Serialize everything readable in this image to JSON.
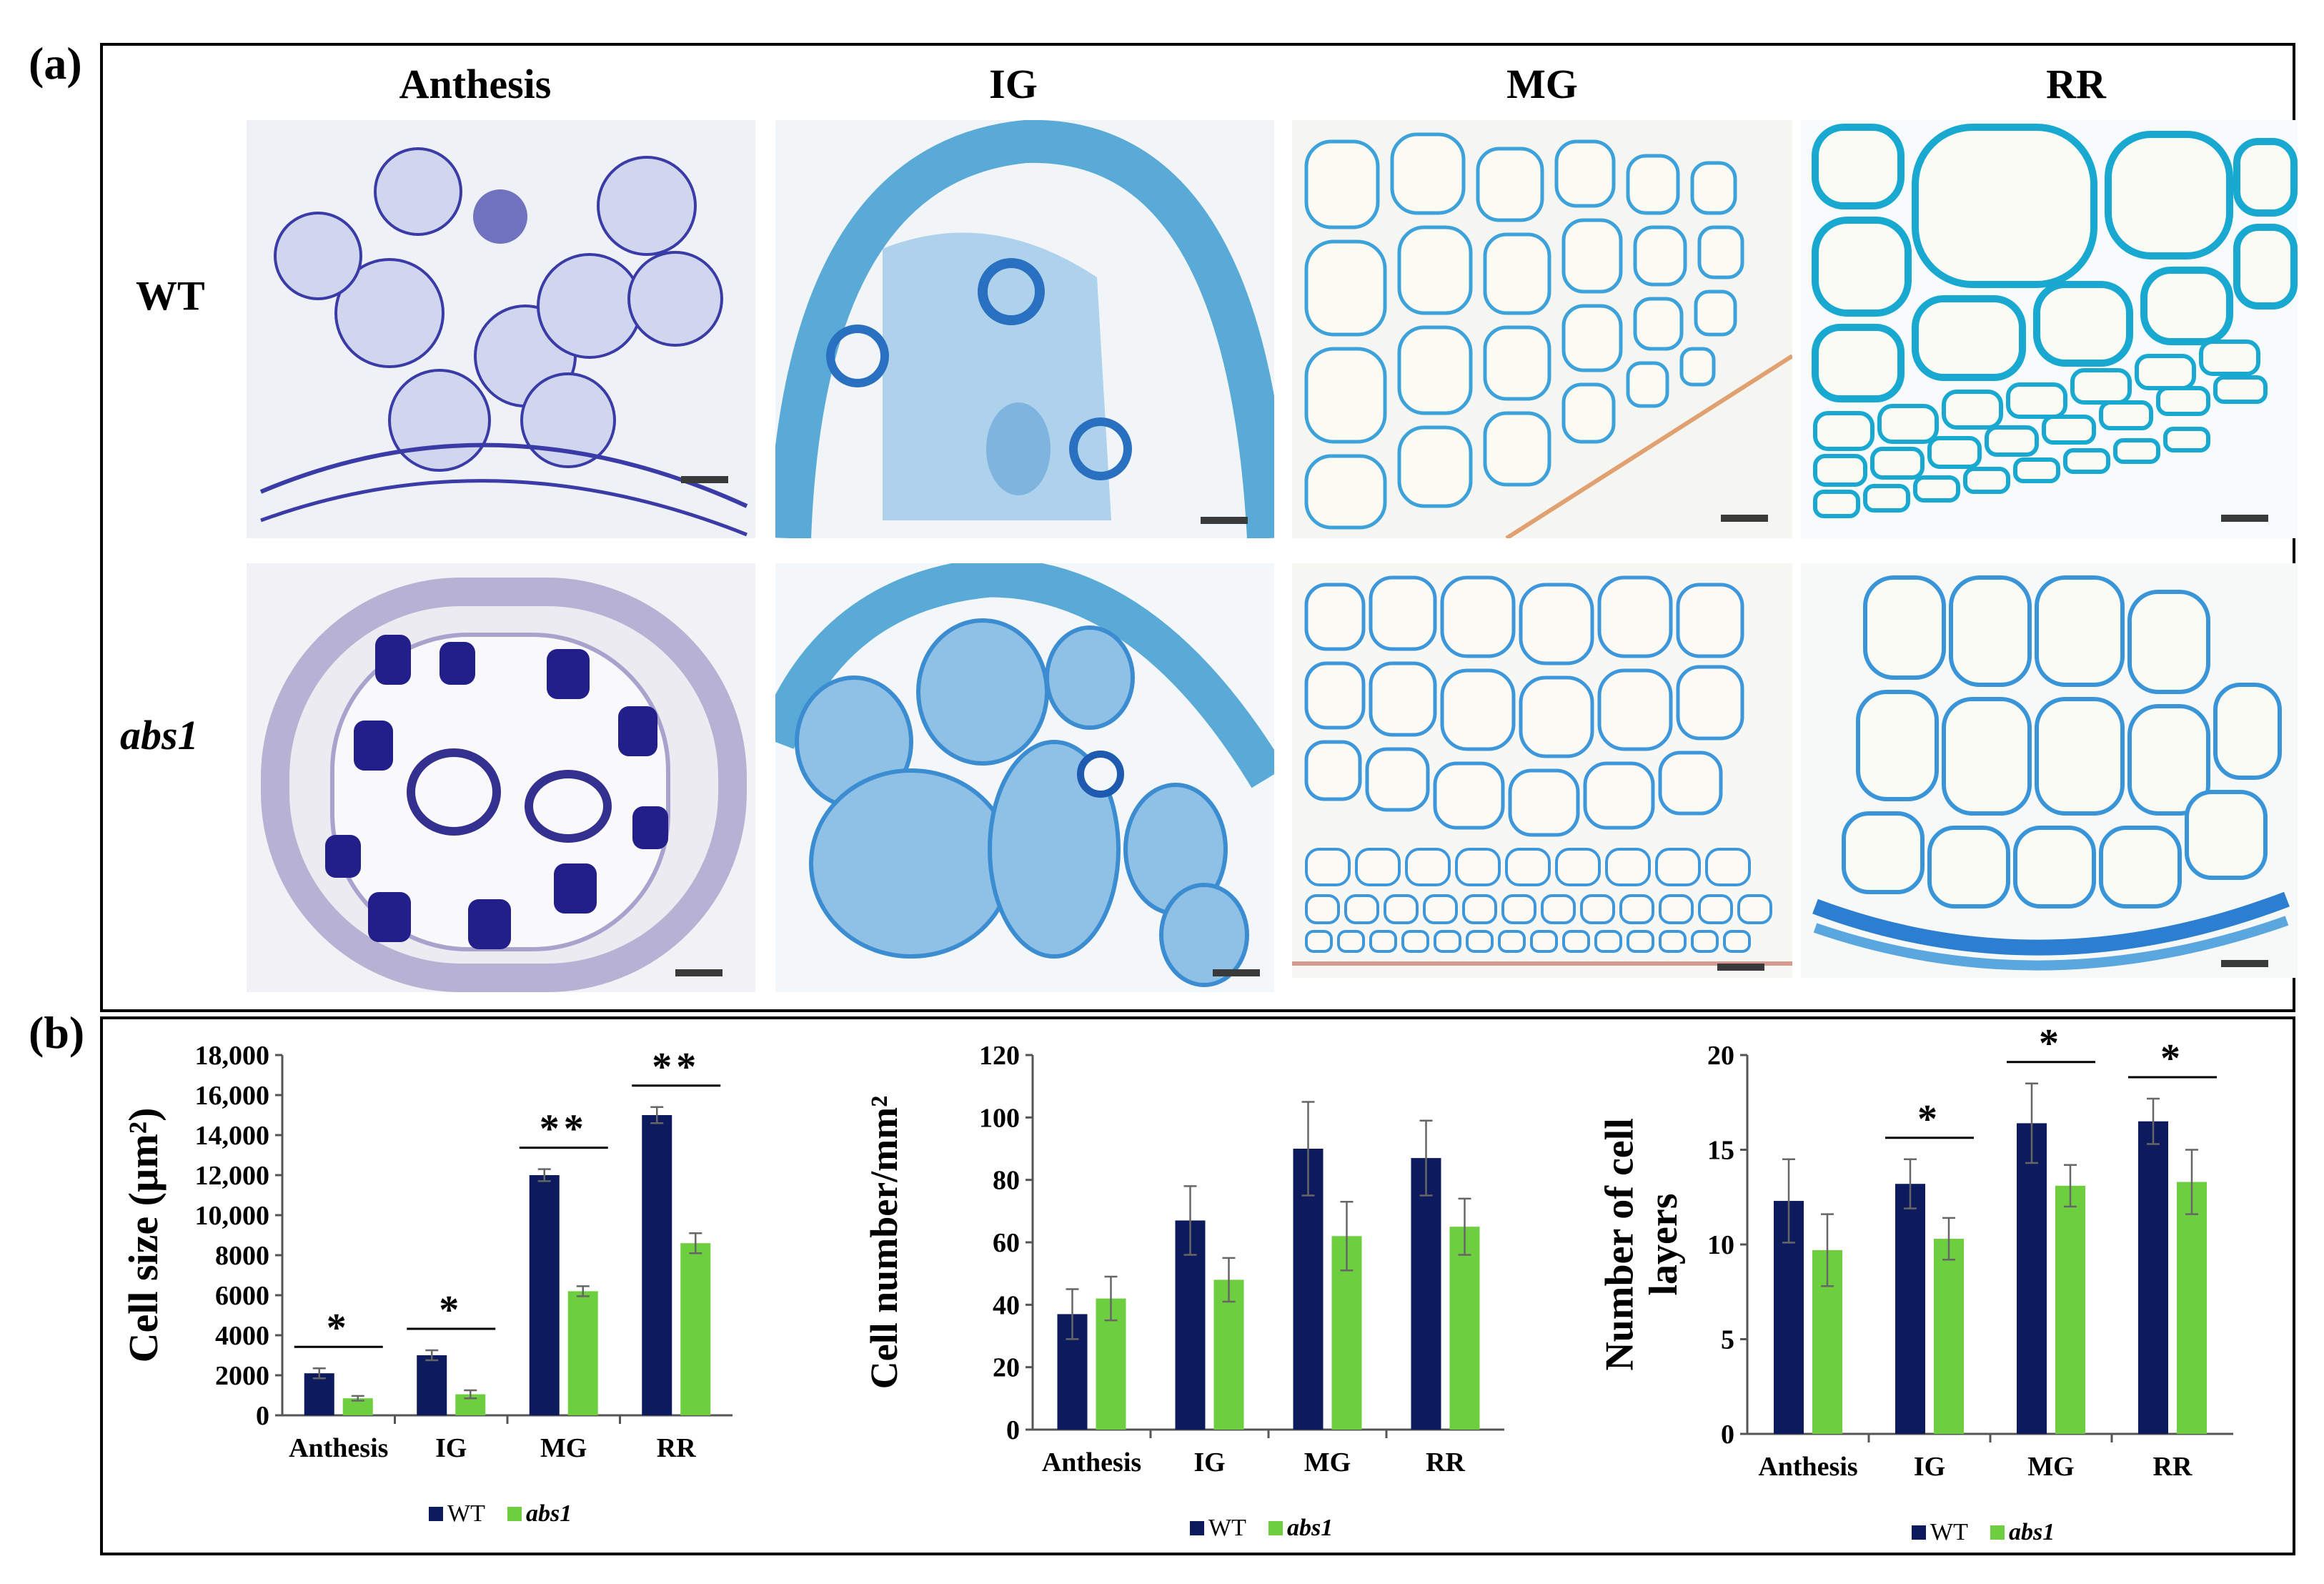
{
  "panel_a": {
    "label": "(a)",
    "columns": [
      "Anthesis",
      "IG",
      "MG",
      "RR"
    ],
    "rows": [
      "WT",
      "abs1"
    ]
  },
  "panel_b": {
    "label": "(b)"
  },
  "colors": {
    "WT": "#0d1b5e",
    "abs1": "#6dcf3f",
    "stain_dark": "#3b3ba8",
    "stain_blue": "#2aa7d8"
  },
  "chart_data": [
    {
      "type": "bar",
      "categories": [
        "Anthesis",
        "IG",
        "MG",
        "RR"
      ],
      "series": [
        {
          "name": "WT",
          "values": [
            2100,
            3000,
            12000,
            15000
          ],
          "errors": [
            250,
            250,
            300,
            400
          ]
        },
        {
          "name": "abs1",
          "values": [
            850,
            1050,
            6200,
            8600
          ],
          "errors": [
            120,
            200,
            250,
            500
          ]
        }
      ],
      "ylabel": "Cell size (µm²)",
      "ylim": [
        0,
        18000
      ],
      "yticks": [
        "0",
        "2000",
        "4000",
        "6000",
        "8000",
        "10,000",
        "12,000",
        "14,000",
        "16,000",
        "18,000"
      ],
      "significance": [
        "*",
        "*",
        "**",
        "**"
      ],
      "legend": [
        "WT",
        "abs1"
      ]
    },
    {
      "type": "bar",
      "categories": [
        "Anthesis",
        "IG",
        "MG",
        "RR"
      ],
      "series": [
        {
          "name": "WT",
          "values": [
            37,
            67,
            90,
            87
          ],
          "errors": [
            8,
            11,
            15,
            12
          ]
        },
        {
          "name": "abs1",
          "values": [
            42,
            48,
            62,
            65
          ],
          "errors": [
            7,
            7,
            11,
            9
          ]
        }
      ],
      "ylabel": "Cell number/mm²",
      "ylim": [
        0,
        120
      ],
      "yticks": [
        "0",
        "20",
        "40",
        "60",
        "80",
        "100",
        "120"
      ],
      "significance": [
        "",
        "",
        "",
        ""
      ],
      "legend": [
        "WT",
        "abs1"
      ]
    },
    {
      "type": "bar",
      "categories": [
        "Anthesis",
        "IG",
        "MG",
        "RR"
      ],
      "series": [
        {
          "name": "WT",
          "values": [
            12.3,
            13.2,
            16.4,
            16.5
          ],
          "errors": [
            2.2,
            1.3,
            2.1,
            1.2
          ]
        },
        {
          "name": "abs1",
          "values": [
            9.7,
            10.3,
            13.1,
            13.3
          ],
          "errors": [
            1.9,
            1.1,
            1.1,
            1.7
          ]
        }
      ],
      "ylabel": "Number of cell layers",
      "ylim": [
        0,
        20
      ],
      "yticks": [
        "0",
        "5",
        "10",
        "15",
        "20"
      ],
      "significance": [
        "",
        "*",
        "*",
        "*"
      ],
      "legend": [
        "WT",
        "abs1"
      ]
    }
  ]
}
